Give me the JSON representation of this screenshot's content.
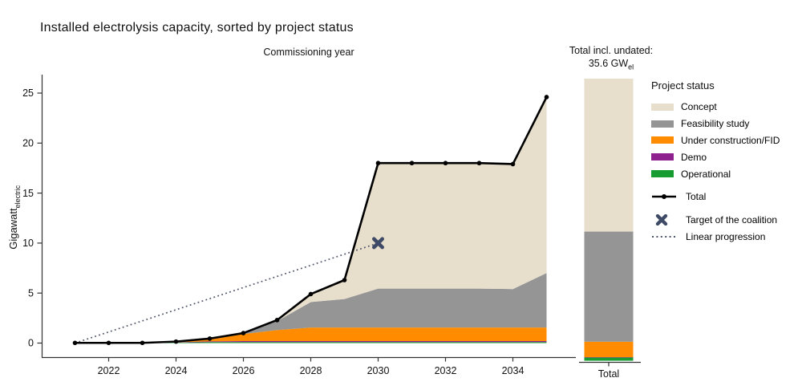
{
  "title": "Installed electrolysis capacity, sorted by project status",
  "header": {
    "total_line1": "Total incl. undated:",
    "total_line2_main": "35.6 GW",
    "total_line2_sub": "el"
  },
  "y_axis": {
    "label_main": "Gigawatt",
    "label_sub": "electric"
  },
  "legend": {
    "title": "Project status",
    "items": [
      {
        "label": "Concept",
        "color": "#e7decb"
      },
      {
        "label": "Feasibility study",
        "color": "#959595"
      },
      {
        "label": "Under construction/FID",
        "color": "#ff8c00"
      },
      {
        "label": "Demo",
        "color": "#8e218e"
      },
      {
        "label": "Operational",
        "color": "#169c31"
      }
    ],
    "total_label": "Total",
    "target_label": "Target of the coalition",
    "linear_label": "Linear progression",
    "total_color": "#000000",
    "target_color": "#3e4a66",
    "linear_color": "#4e5468"
  },
  "chart_data": {
    "type": "area",
    "stacked": true,
    "title": "Installed electrolysis capacity, sorted by project status",
    "xlabel": "Commissioning year",
    "ylabel": "Gigawatt electric",
    "ylim": [
      0,
      25
    ],
    "xticks": [
      2022,
      2024,
      2026,
      2028,
      2030,
      2032,
      2034
    ],
    "yticks": [
      0,
      5,
      10,
      15,
      20,
      25
    ],
    "x": [
      2021,
      2022,
      2023,
      2024,
      2025,
      2026,
      2027,
      2028,
      2029,
      2030,
      2031,
      2032,
      2033,
      2034,
      2035
    ],
    "series": [
      {
        "name": "Operational",
        "color": "#169c31",
        "values": [
          0.02,
          0.02,
          0.02,
          0.05,
          0.1,
          0.1,
          0.1,
          0.1,
          0.1,
          0.1,
          0.1,
          0.1,
          0.1,
          0.1,
          0.1
        ]
      },
      {
        "name": "Demo",
        "color": "#8e218e",
        "values": [
          0,
          0,
          0,
          0.03,
          0.07,
          0.1,
          0.1,
          0.1,
          0.1,
          0.1,
          0.1,
          0.1,
          0.1,
          0.1,
          0.1
        ]
      },
      {
        "name": "Under construction/FID",
        "color": "#ff8c00",
        "values": [
          0,
          0,
          0,
          0.07,
          0.18,
          0.7,
          1.1,
          1.35,
          1.35,
          1.35,
          1.35,
          1.35,
          1.35,
          1.35,
          1.35
        ]
      },
      {
        "name": "Feasibility study",
        "color": "#959595",
        "values": [
          0,
          0,
          0,
          0,
          0.1,
          0.1,
          0.9,
          2.55,
          2.85,
          3.9,
          3.9,
          3.9,
          3.9,
          3.85,
          5.45
        ]
      },
      {
        "name": "Concept",
        "color": "#e7decb",
        "values": [
          0,
          0,
          0,
          0,
          0,
          0,
          0.1,
          0.8,
          1.9,
          12.55,
          12.55,
          12.55,
          12.55,
          12.5,
          17.6
        ]
      }
    ],
    "total": {
      "name": "Total",
      "values": [
        0.02,
        0.02,
        0.02,
        0.15,
        0.45,
        1.0,
        2.3,
        4.9,
        6.3,
        18,
        18,
        18,
        18,
        17.9,
        24.6
      ]
    },
    "target": {
      "label": "Target of the coalition",
      "x": 2030,
      "y": 10
    },
    "linear_progression": {
      "from": [
        2021,
        0
      ],
      "to": [
        2030,
        10
      ]
    },
    "total_bar": {
      "label": "Total",
      "annotation": "Total incl. undated: 35.6 GW el",
      "total_gw": 35.6,
      "segments": [
        {
          "name": "Operational",
          "value": 0.4
        },
        {
          "name": "Demo",
          "value": 0.05
        },
        {
          "name": "Under construction/FID",
          "value": 1.95
        },
        {
          "name": "Feasibility study",
          "value": 13.9
        },
        {
          "name": "Concept",
          "value": 19.3
        }
      ]
    }
  }
}
